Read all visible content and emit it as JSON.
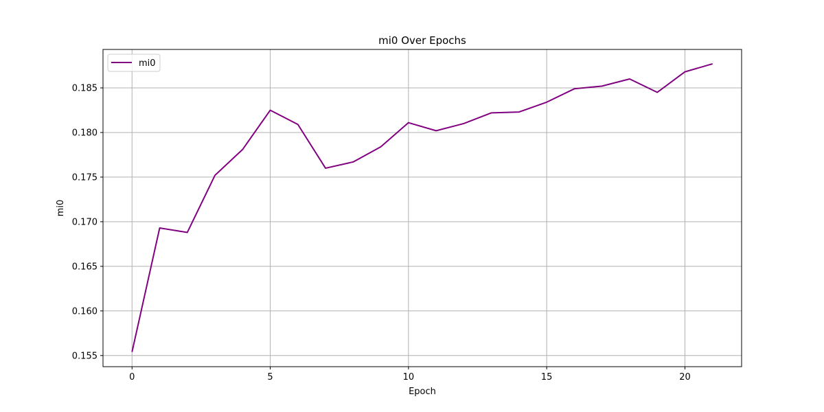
{
  "chart_data": {
    "type": "line",
    "title": "mi0 Over Epochs",
    "xlabel": "Epoch",
    "ylabel": "mi0",
    "xlim": [
      -1.05,
      22.05
    ],
    "ylim": [
      0.15375,
      0.18931
    ],
    "x_ticks": [
      0,
      5,
      10,
      15,
      20
    ],
    "y_ticks": [
      0.155,
      0.16,
      0.165,
      0.17,
      0.175,
      0.18,
      0.185
    ],
    "y_tick_labels": [
      "0.155",
      "0.160",
      "0.165",
      "0.170",
      "0.175",
      "0.180",
      "0.185"
    ],
    "grid": true,
    "legend_position": "upper-left",
    "series": [
      {
        "name": "mi0",
        "color": "#800080",
        "x": [
          0,
          1,
          2,
          3,
          4,
          5,
          6,
          7,
          8,
          9,
          10,
          11,
          12,
          13,
          14,
          15,
          16,
          17,
          18,
          19,
          20,
          21
        ],
        "values": [
          0.1554,
          0.1693,
          0.1688,
          0.1752,
          0.1781,
          0.1825,
          0.1809,
          0.176,
          0.1767,
          0.1784,
          0.1811,
          0.1802,
          0.181,
          0.1822,
          0.1823,
          0.1834,
          0.1849,
          0.1852,
          0.186,
          0.1845,
          0.1868,
          0.1877
        ]
      }
    ]
  }
}
